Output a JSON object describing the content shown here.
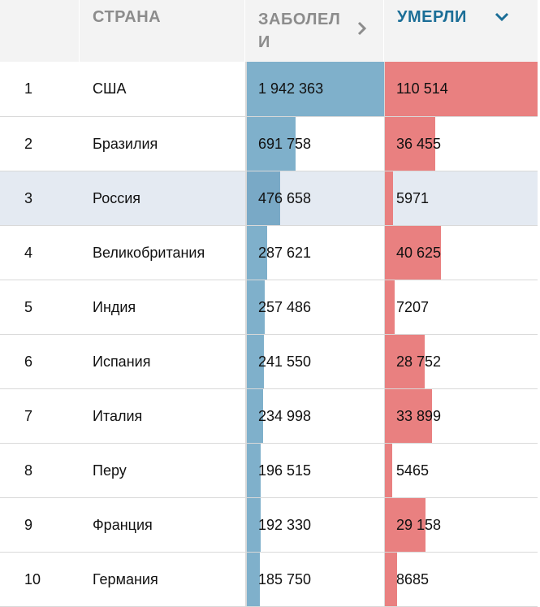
{
  "header": {
    "country": "СТРАНА",
    "cases": "ЗАБОЛЕЛИ",
    "deaths": "УМЕРЛИ",
    "cases_icon": "chevron-right-icon",
    "deaths_icon": "chevron-down-icon"
  },
  "colors": {
    "cases_bar": "#7fb0cb",
    "deaths_bar": "#e98080",
    "highlight_row": "#e4eaf2",
    "active_header": "#1b6e97"
  },
  "chart_data": {
    "type": "table",
    "columns": [
      "",
      "СТРАНА",
      "ЗАБОЛЕЛИ",
      "УМЕРЛИ"
    ],
    "sorted_by": "УМЕРЛИ",
    "highlighted_row": 3,
    "rows": [
      {
        "rank": "1",
        "country": "США",
        "cases": 1942363,
        "cases_label": "1 942 363",
        "deaths": 110514,
        "deaths_label": "110 514"
      },
      {
        "rank": "2",
        "country": "Бразилия",
        "cases": 691758,
        "cases_label": "691 758",
        "deaths": 36455,
        "deaths_label": "36 455"
      },
      {
        "rank": "3",
        "country": "Россия",
        "cases": 476658,
        "cases_label": "476 658",
        "deaths": 5971,
        "deaths_label": "5971"
      },
      {
        "rank": "4",
        "country": "Великобритания",
        "cases": 287621,
        "cases_label": "287 621",
        "deaths": 40625,
        "deaths_label": "40 625"
      },
      {
        "rank": "5",
        "country": "Индия",
        "cases": 257486,
        "cases_label": "257 486",
        "deaths": 7207,
        "deaths_label": "7207"
      },
      {
        "rank": "6",
        "country": "Испания",
        "cases": 241550,
        "cases_label": "241 550",
        "deaths": 28752,
        "deaths_label": "28 752"
      },
      {
        "rank": "7",
        "country": "Италия",
        "cases": 234998,
        "cases_label": "234 998",
        "deaths": 33899,
        "deaths_label": "33 899"
      },
      {
        "rank": "8",
        "country": "Перу",
        "cases": 196515,
        "cases_label": "196 515",
        "deaths": 5465,
        "deaths_label": "5465"
      },
      {
        "rank": "9",
        "country": "Франция",
        "cases": 192330,
        "cases_label": "192 330",
        "deaths": 29158,
        "deaths_label": "29 158"
      },
      {
        "rank": "10",
        "country": "Германия",
        "cases": 185750,
        "cases_label": "185 750",
        "deaths": 8685,
        "deaths_label": "8685"
      }
    ]
  }
}
